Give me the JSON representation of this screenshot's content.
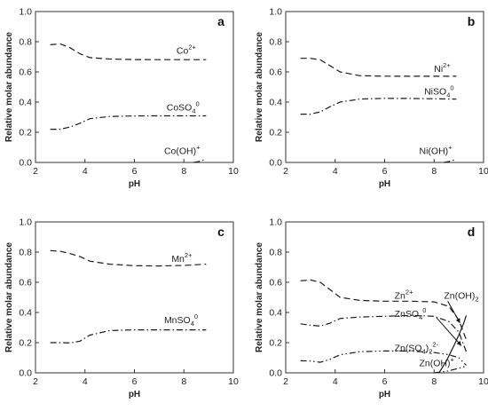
{
  "chart_data": [
    {
      "panel": "a",
      "type": "line",
      "xlabel": "pH",
      "ylabel": "Relative molar abundance",
      "xlim": [
        2,
        10
      ],
      "ylim": [
        0,
        1.0
      ],
      "xticks": [
        "2",
        "4",
        "6",
        "8",
        "10"
      ],
      "yticks": [
        "0.0",
        "0.2",
        "0.4",
        "0.6",
        "0.8",
        "1.0"
      ],
      "series": [
        {
          "name": "Co2+",
          "label": {
            "base": "Co",
            "sup": "2+"
          },
          "style": "dash",
          "x": [
            2.6,
            3.0,
            3.4,
            3.8,
            4.2,
            5.0,
            6.0,
            7.0,
            8.0,
            8.9
          ],
          "y": [
            0.78,
            0.785,
            0.76,
            0.72,
            0.695,
            0.685,
            0.682,
            0.681,
            0.681,
            0.681
          ]
        },
        {
          "name": "CoSO40",
          "label": {
            "base": "CoSO",
            "sub": "4",
            "sup": "0"
          },
          "style": "dashdot",
          "x": [
            2.6,
            3.0,
            3.4,
            3.8,
            4.2,
            5.0,
            6.0,
            7.0,
            8.0,
            8.9
          ],
          "y": [
            0.22,
            0.22,
            0.235,
            0.26,
            0.29,
            0.305,
            0.308,
            0.309,
            0.309,
            0.309
          ]
        },
        {
          "name": "Co(OH)+",
          "label": {
            "base": "Co(OH)",
            "sup": "+"
          },
          "style": "dashdotdot",
          "x": [
            8.4,
            8.6,
            8.9
          ],
          "y": [
            0.0,
            0.006,
            0.022
          ]
        }
      ]
    },
    {
      "panel": "b",
      "type": "line",
      "xlabel": "pH",
      "ylabel": "Relative molar abundance",
      "xlim": [
        2,
        10
      ],
      "ylim": [
        0,
        1.0
      ],
      "xticks": [
        "2",
        "4",
        "6",
        "8",
        "10"
      ],
      "yticks": [
        "0.0",
        "0.2",
        "0.4",
        "0.6",
        "0.8",
        "1.0"
      ],
      "series": [
        {
          "name": "Ni2+",
          "label": {
            "base": "Ni",
            "sup": "2+"
          },
          "style": "dash",
          "x": [
            2.6,
            3.0,
            3.4,
            3.8,
            4.2,
            5.0,
            6.0,
            7.0,
            8.0,
            8.9
          ],
          "y": [
            0.69,
            0.69,
            0.68,
            0.64,
            0.6,
            0.575,
            0.572,
            0.571,
            0.571,
            0.571
          ]
        },
        {
          "name": "NiSO40",
          "label": {
            "base": "NiSO",
            "sub": "4",
            "sup": "0"
          },
          "style": "dashdot",
          "x": [
            2.6,
            3.0,
            3.4,
            3.8,
            4.2,
            5.0,
            6.0,
            7.0,
            8.0,
            8.9
          ],
          "y": [
            0.32,
            0.32,
            0.335,
            0.37,
            0.4,
            0.42,
            0.425,
            0.424,
            0.422,
            0.42
          ]
        },
        {
          "name": "Ni(OH)+",
          "label": {
            "base": "Ni(OH)",
            "sup": "+"
          },
          "style": "dashdotdot",
          "x": [
            8.4,
            8.6,
            8.9
          ],
          "y": [
            0.0,
            0.006,
            0.022
          ]
        }
      ]
    },
    {
      "panel": "c",
      "type": "line",
      "xlabel": "pH",
      "ylabel": "Relative molar abundance",
      "xlim": [
        2,
        10
      ],
      "ylim": [
        0,
        1.0
      ],
      "xticks": [
        "2",
        "4",
        "6",
        "8",
        "10"
      ],
      "yticks": [
        "0.0",
        "0.2",
        "0.4",
        "0.6",
        "0.8",
        "1.0"
      ],
      "series": [
        {
          "name": "Mn2+",
          "label": {
            "base": "Mn",
            "sup": "2+"
          },
          "style": "dash",
          "x": [
            2.6,
            3.0,
            3.4,
            3.8,
            4.2,
            5.0,
            6.0,
            7.0,
            8.0,
            8.9
          ],
          "y": [
            0.81,
            0.805,
            0.79,
            0.77,
            0.74,
            0.72,
            0.71,
            0.708,
            0.712,
            0.72
          ]
        },
        {
          "name": "MnSO40",
          "label": {
            "base": "MnSO",
            "sub": "4",
            "sup": "0"
          },
          "style": "dashdot",
          "x": [
            2.6,
            3.0,
            3.4,
            3.8,
            4.2,
            5.0,
            6.0,
            7.0,
            8.0,
            8.9
          ],
          "y": [
            0.2,
            0.2,
            0.198,
            0.21,
            0.25,
            0.28,
            0.285,
            0.285,
            0.285,
            0.285
          ]
        }
      ]
    },
    {
      "panel": "d",
      "type": "line",
      "xlabel": "pH",
      "ylabel": "Relative molar abundance",
      "xlim": [
        2,
        10
      ],
      "ylim": [
        0,
        1.0
      ],
      "xticks": [
        "2",
        "4",
        "6",
        "8",
        "10"
      ],
      "yticks": [
        "0.0",
        "0.2",
        "0.4",
        "0.6",
        "0.8",
        "1.0"
      ],
      "series": [
        {
          "name": "Zn2+",
          "label": {
            "base": "Zn",
            "sup": "2+"
          },
          "style": "dash",
          "x": [
            2.6,
            3.0,
            3.4,
            3.8,
            4.2,
            5.0,
            6.0,
            7.0,
            8.0,
            8.6,
            9.0,
            9.3
          ],
          "y": [
            0.61,
            0.615,
            0.6,
            0.55,
            0.5,
            0.48,
            0.475,
            0.475,
            0.47,
            0.44,
            0.35,
            0.22
          ]
        },
        {
          "name": "ZnSO40",
          "label": {
            "base": "ZnSO",
            "sub": "4",
            "sup": "0"
          },
          "style": "dashdot",
          "x": [
            2.6,
            3.0,
            3.4,
            3.8,
            4.2,
            5.0,
            6.0,
            7.0,
            8.0,
            8.6,
            9.0,
            9.3
          ],
          "y": [
            0.325,
            0.315,
            0.31,
            0.33,
            0.36,
            0.37,
            0.375,
            0.38,
            0.375,
            0.34,
            0.27,
            0.14
          ]
        },
        {
          "name": "Zn(SO4)22-",
          "label": {
            "base": "Zn(SO",
            "sub": "4",
            "mid": ")",
            "sub2": "2",
            "sup": "2-"
          },
          "style": "dashdotdot",
          "x": [
            2.6,
            3.0,
            3.4,
            3.8,
            4.2,
            5.0,
            6.0,
            7.0,
            8.0,
            8.6,
            9.0,
            9.3
          ],
          "y": [
            0.08,
            0.078,
            0.07,
            0.09,
            0.12,
            0.14,
            0.145,
            0.145,
            0.135,
            0.12,
            0.1,
            0.05
          ]
        },
        {
          "name": "Zn(OH)2",
          "label": {
            "base": "Zn(OH)",
            "sub": "2"
          },
          "style": "solid",
          "x": [
            8.2,
            8.5,
            8.8,
            9.0,
            9.2,
            9.3
          ],
          "y": [
            0.0,
            0.08,
            0.18,
            0.25,
            0.33,
            0.38
          ]
        },
        {
          "name": "Zn(OH)+",
          "label": {
            "base": "Zn(OH)",
            "sup": "+"
          },
          "style": "dashdotdot",
          "x": [
            8.0,
            8.5,
            9.0,
            9.3
          ],
          "y": [
            0.0,
            0.01,
            0.03,
            0.045
          ]
        }
      ]
    }
  ]
}
